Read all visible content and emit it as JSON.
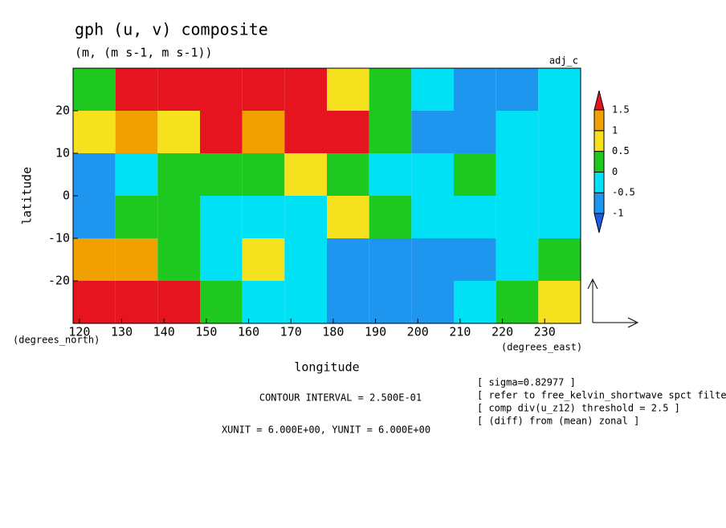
{
  "chart_data": {
    "type": "contour",
    "title": "gph (u, v) composite",
    "subtitle": "(m, (m s-1, m s-1))",
    "label": "adj_c",
    "y_label": "latitude",
    "x_label": "longitude",
    "y_units": "(degrees_north)",
    "x_units": "(degrees_east)",
    "xlim": [
      118.5,
      238.5
    ],
    "ylim": [
      -30,
      30
    ],
    "xticks": [
      120,
      130,
      140,
      150,
      160,
      170,
      180,
      190,
      200,
      210,
      220,
      230
    ],
    "yticks": [
      -20,
      -10,
      0,
      10,
      20
    ],
    "x": [
      123.5,
      133.5,
      143.5,
      153.5,
      163.5,
      173.5,
      183.5,
      193.5,
      203.5,
      213.5,
      223.5,
      233.5
    ],
    "y": [
      25,
      15,
      5,
      -5,
      -15,
      -25
    ],
    "values": [
      [
        0.3,
        1.6,
        1.6,
        1.6,
        1.6,
        1.6,
        0.7,
        0.2,
        -0.3,
        -0.7,
        -0.6,
        -0.5
      ],
      [
        0.7,
        1.2,
        0.8,
        1.6,
        1.0,
        1.6,
        1.6,
        0.3,
        -0.7,
        -0.7,
        -0.4,
        -0.3
      ],
      [
        -0.7,
        -0.3,
        0.3,
        0.2,
        0.4,
        0.7,
        0.3,
        -0.3,
        -0.3,
        0.2,
        -0.2,
        -0.3
      ],
      [
        -0.6,
        0.3,
        0.2,
        -0.4,
        -0.2,
        -0.3,
        0.8,
        0.2,
        -0.3,
        -0.4,
        -0.3,
        -0.3
      ],
      [
        1.2,
        1.0,
        0.3,
        -0.3,
        0.6,
        -0.4,
        -0.7,
        -0.7,
        -0.7,
        -0.7,
        -0.4,
        0.2
      ],
      [
        1.6,
        1.6,
        1.6,
        0.3,
        -0.3,
        -0.3,
        -0.7,
        -0.7,
        -0.7,
        -0.4,
        0.3,
        0.7
      ]
    ],
    "levels": [
      -1,
      -0.5,
      0,
      0.5,
      1,
      1.5
    ],
    "colors": [
      "#1a5ce6",
      "#1e96f0",
      "#00e1f5",
      "#1ec81e",
      "#f5e11e",
      "#f0a000",
      "#e6141e"
    ],
    "footer": [
      "CONTOUR INTERVAL = 2.500E-01",
      "XUNIT = 6.000E+00, YUNIT = 6.000E+00"
    ],
    "notes": [
      "[ sigma=0.82977 ]",
      "[ refer to free_kelvin_shortwave spct filteri",
      "[ comp div(u_z12) threshold = 2.5 ]",
      "[ (diff) from (mean) zonal ]"
    ]
  }
}
